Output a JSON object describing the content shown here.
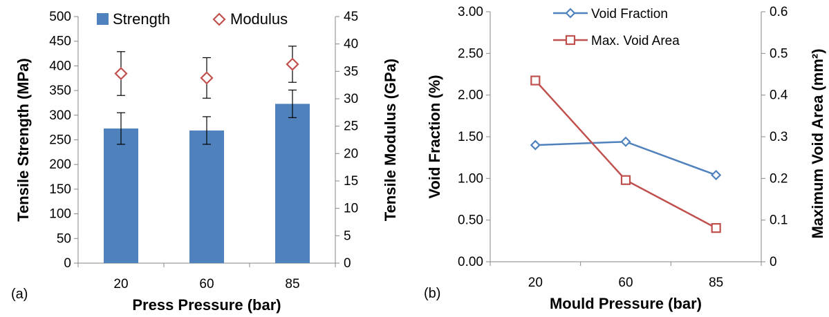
{
  "chart_data": [
    {
      "panel_label": "(a)",
      "type": "bar",
      "categories": [
        "20",
        "60",
        "85"
      ],
      "xlabel": "Press Pressure (bar)",
      "ylabel": "Tensile Strength (MPa)",
      "ylabel_right": "Tensile Modulus (GPa)",
      "ylim": [
        0,
        500
      ],
      "yticks": [
        "0",
        "50",
        "100",
        "150",
        "200",
        "250",
        "300",
        "350",
        "400",
        "450",
        "500"
      ],
      "ylim_right": [
        0,
        45
      ],
      "yticks_right": [
        "0",
        "5",
        "10",
        "15",
        "20",
        "25",
        "30",
        "35",
        "40",
        "45"
      ],
      "legend": "top",
      "grid": false,
      "series": [
        {
          "name": "Strength",
          "type": "bar",
          "axis": "left",
          "color": "#4f81bd",
          "values": [
            273,
            269,
            323
          ],
          "error": [
            32,
            28,
            28
          ]
        },
        {
          "name": "Modulus",
          "type": "marker",
          "marker": "diamond",
          "axis": "right",
          "color": "#c0504d",
          "values": [
            34.6,
            33.8,
            36.3
          ],
          "error": [
            4.0,
            3.7,
            3.3
          ]
        }
      ]
    },
    {
      "panel_label": "(b)",
      "type": "line",
      "categories": [
        "20",
        "60",
        "85"
      ],
      "xlabel": "Mould Pressure (bar)",
      "ylabel": "Void Fraction (%)",
      "ylabel_right": "Maximum Void Area (mm²)",
      "ylim": [
        0,
        3
      ],
      "yticks": [
        "0.00",
        "0.50",
        "1.00",
        "1.50",
        "2.00",
        "2.50",
        "3.00"
      ],
      "ylim_right": [
        0,
        0.6
      ],
      "yticks_right": [
        "0",
        "0.1",
        "0.2",
        "0.3",
        "0.4",
        "0.5",
        "0.6"
      ],
      "legend": "top",
      "grid": false,
      "series": [
        {
          "name": "Void Fraction",
          "axis": "left",
          "marker": "diamond",
          "color": "#4f81bd",
          "values": [
            1.4,
            1.44,
            1.04
          ]
        },
        {
          "name": "Max. Void Area",
          "axis": "right",
          "marker": "square",
          "color": "#c0504d",
          "values": [
            0.435,
            0.196,
            0.081
          ]
        }
      ]
    }
  ]
}
